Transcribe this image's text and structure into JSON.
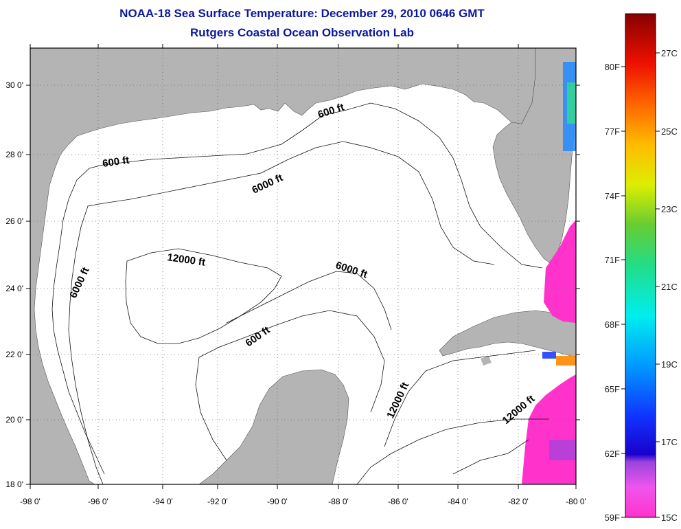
{
  "header": {
    "title": "NOAA-18 Sea Surface Temperature:  December 29, 2010 0646 GMT",
    "subtitle": "Rutgers Coastal Ocean Observation Lab"
  },
  "map": {
    "lat_ticks": [
      "30 0'",
      "28 0'",
      "26 0'",
      "24 0'",
      "22 0'",
      "20 0'",
      "18 0'"
    ],
    "lon_ticks": [
      "-98 0'",
      "-96 0'",
      "-94 0'",
      "-92 0'",
      "-90 0'",
      "-88 0'",
      "-86 0'",
      "-84 0'",
      "-82 0'",
      "-80 0'"
    ],
    "contour_labels": [
      "600 ft",
      "600 ft",
      "6000 ft",
      "6000 ft",
      "12000 ft",
      "6000 ft",
      "600 ft",
      "12000 ft",
      "12000 ft"
    ],
    "land_color": "#b4b4b4",
    "ocean_color": "#ffffff"
  },
  "colorbar": {
    "f_labels": [
      "80F",
      "77F",
      "74F",
      "71F",
      "68F",
      "65F",
      "62F",
      "59F"
    ],
    "c_labels": [
      "27C",
      "25C",
      "23C",
      "21C",
      "19C",
      "17C",
      "15C"
    ]
  }
}
